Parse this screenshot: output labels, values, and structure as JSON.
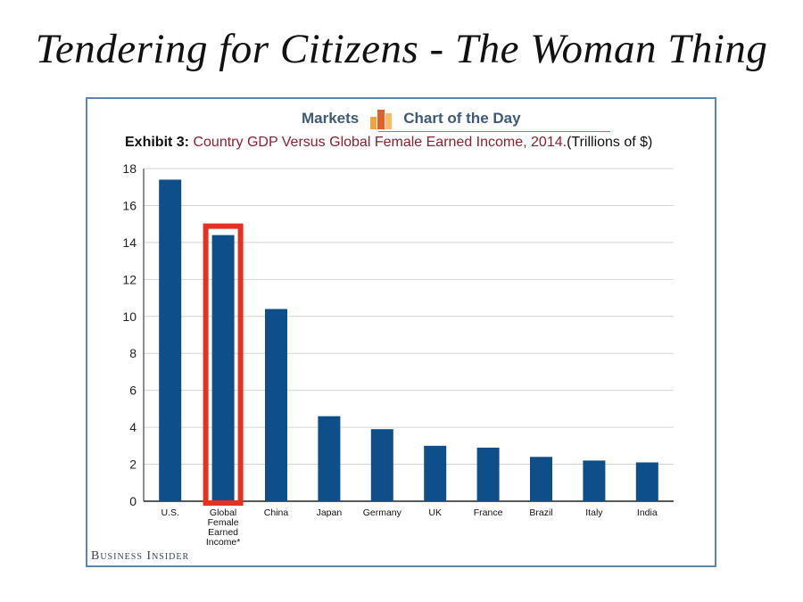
{
  "slide": {
    "title": "Tendering for Citizens - The Woman Thing"
  },
  "brand": {
    "left": "Markets",
    "right": "Chart of the Day",
    "logo": "bar-chart-logo-icon"
  },
  "exhibit": {
    "label": "Exhibit 3:",
    "text": "Country GDP Versus Global Female Earned Income, 2014.",
    "unit": "(Trillions of $)"
  },
  "footer": {
    "source": "Business Insider"
  },
  "colors": {
    "bar": "#0e4f8a",
    "highlight": "#e5311f",
    "title_red": "#8e1f2e",
    "brand": "#3e5a78",
    "frame": "#5f86a8"
  },
  "chart_data": {
    "type": "bar",
    "title": "Country GDP Versus Global Female Earned Income, 2014.",
    "ylabel": "(Trillions of $)",
    "categories": [
      "U.S.",
      "Global\nFemale\nEarned\nIncome*",
      "China",
      "Japan",
      "Germany",
      "UK",
      "France",
      "Brazil",
      "Italy",
      "India"
    ],
    "values": [
      17.4,
      14.4,
      10.4,
      4.6,
      3.9,
      3.0,
      2.9,
      2.4,
      2.2,
      2.1
    ],
    "ylim": [
      0,
      18
    ],
    "yticks": [
      0,
      2,
      4,
      6,
      8,
      10,
      12,
      14,
      16,
      18
    ],
    "grid": true,
    "highlight_index": 1
  }
}
